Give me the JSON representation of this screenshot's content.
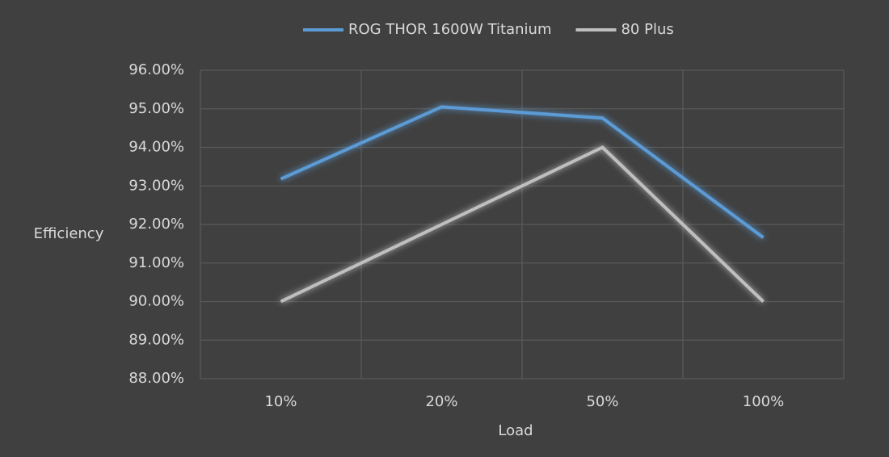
{
  "chart_data": {
    "type": "line",
    "x_label": "Load",
    "y_label": "Efficiency",
    "categories": [
      "10%",
      "20%",
      "50%",
      "100%"
    ],
    "series": [
      {
        "name": "ROG THOR 1600W Titanium",
        "color": "#5b9bd5",
        "values": [
          93.18,
          95.05,
          94.76,
          91.66
        ]
      },
      {
        "name": "80 Plus",
        "color": "#bfbfbf",
        "values": [
          90,
          92,
          94,
          90
        ]
      }
    ],
    "ylim": [
      88,
      96
    ],
    "yticks": [
      {
        "value": 88,
        "label": "88.00%"
      },
      {
        "value": 89,
        "label": "89.00%"
      },
      {
        "value": 90,
        "label": "90.00%"
      },
      {
        "value": 91,
        "label": "91.00%"
      },
      {
        "value": 92,
        "label": "92.00%"
      },
      {
        "value": 93,
        "label": "93.00%"
      },
      {
        "value": 94,
        "label": "94.00%"
      },
      {
        "value": 95,
        "label": "95.00%"
      },
      {
        "value": 96,
        "label": "96.00%"
      }
    ],
    "grid": true,
    "legend": "top"
  }
}
